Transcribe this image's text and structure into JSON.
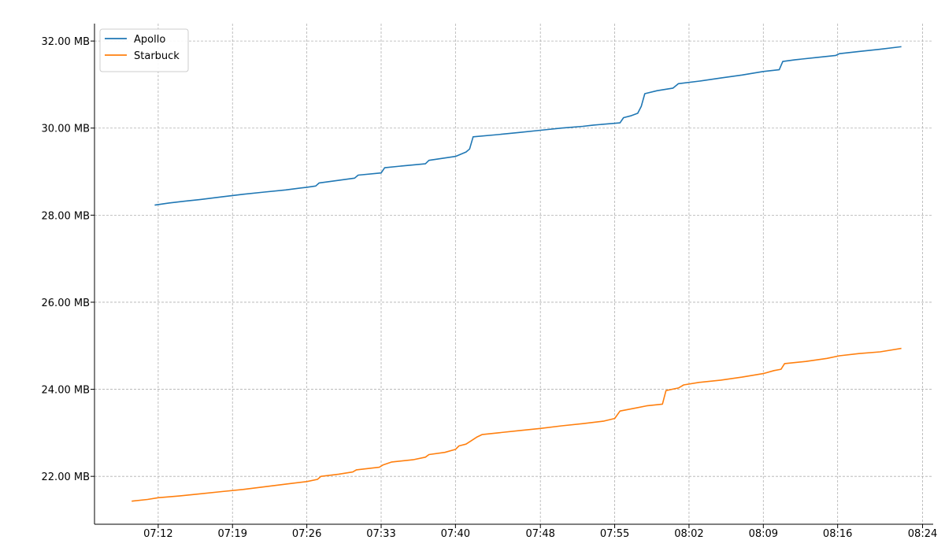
{
  "chart_data": {
    "type": "line",
    "title": "",
    "xlabel": "",
    "ylabel": "",
    "x_ticks": [
      "07:12",
      "07:19",
      "07:26",
      "07:33",
      "07:40",
      "07:48",
      "07:55",
      "08:02",
      "08:09",
      "08:16",
      "08:24"
    ],
    "y_ticks": [
      "22.00 MB",
      "24.00 MB",
      "26.00 MB",
      "28.00 MB",
      "30.00 MB",
      "32.00 MB"
    ],
    "xlim": [
      "07:06",
      "08:25"
    ],
    "ylim": [
      20.9,
      32.4
    ],
    "grid": true,
    "legend": "top-left",
    "series": [
      {
        "name": "Apollo",
        "color": "#1f77b4",
        "points": [
          [
            "07:11:40",
            28.23
          ],
          [
            "07:13:00",
            28.28
          ],
          [
            "07:14:30",
            28.32
          ],
          [
            "07:16:00",
            28.36
          ],
          [
            "07:18:00",
            28.42
          ],
          [
            "07:20:00",
            28.48
          ],
          [
            "07:22:00",
            28.53
          ],
          [
            "07:24:00",
            28.58
          ],
          [
            "07:26:00",
            28.64
          ],
          [
            "07:26:50",
            28.67
          ],
          [
            "07:27:10",
            28.74
          ],
          [
            "07:29:00",
            28.8
          ],
          [
            "07:30:30",
            28.85
          ],
          [
            "07:30:50",
            28.92
          ],
          [
            "07:33:00",
            28.97
          ],
          [
            "07:33:20",
            29.09
          ],
          [
            "07:35:00",
            29.13
          ],
          [
            "07:37:10",
            29.18
          ],
          [
            "07:37:30",
            29.26
          ],
          [
            "07:40:00",
            29.35
          ],
          [
            "07:41:00",
            29.45
          ],
          [
            "07:41:20",
            29.52
          ],
          [
            "07:41:40",
            29.8
          ],
          [
            "07:44:00",
            29.85
          ],
          [
            "07:46:00",
            29.9
          ],
          [
            "07:48:00",
            29.95
          ],
          [
            "07:50:00",
            30.0
          ],
          [
            "07:52:00",
            30.04
          ],
          [
            "07:53:00",
            30.07
          ],
          [
            "07:55:30",
            30.12
          ],
          [
            "07:55:50",
            30.24
          ],
          [
            "07:56:30",
            30.28
          ],
          [
            "07:57:10",
            30.34
          ],
          [
            "07:57:30",
            30.5
          ],
          [
            "07:57:50",
            30.79
          ],
          [
            "07:59:00",
            30.86
          ],
          [
            "08:00:30",
            30.92
          ],
          [
            "08:01:00",
            31.02
          ],
          [
            "08:03:00",
            31.08
          ],
          [
            "08:05:00",
            31.15
          ],
          [
            "08:07:00",
            31.22
          ],
          [
            "08:09:00",
            31.3
          ],
          [
            "08:10:30",
            31.34
          ],
          [
            "08:10:50",
            31.53
          ],
          [
            "08:12:00",
            31.57
          ],
          [
            "08:14:00",
            31.62
          ],
          [
            "08:15:50",
            31.67
          ],
          [
            "08:16:10",
            31.71
          ],
          [
            "08:18:00",
            31.76
          ],
          [
            "08:20:00",
            31.81
          ],
          [
            "08:22:00",
            31.87
          ]
        ]
      },
      {
        "name": "Starbuck",
        "color": "#ff7f0e",
        "points": [
          [
            "07:09:30",
            21.43
          ],
          [
            "07:11:00",
            21.47
          ],
          [
            "07:12:00",
            21.51
          ],
          [
            "07:14:00",
            21.55
          ],
          [
            "07:16:00",
            21.6
          ],
          [
            "07:18:00",
            21.65
          ],
          [
            "07:20:00",
            21.7
          ],
          [
            "07:22:00",
            21.76
          ],
          [
            "07:24:00",
            21.82
          ],
          [
            "07:26:00",
            21.88
          ],
          [
            "07:27:00",
            21.93
          ],
          [
            "07:27:20",
            22.0
          ],
          [
            "07:29:00",
            22.05
          ],
          [
            "07:30:20",
            22.1
          ],
          [
            "07:30:40",
            22.15
          ],
          [
            "07:32:50",
            22.21
          ],
          [
            "07:33:10",
            22.26
          ],
          [
            "07:34:00",
            22.33
          ],
          [
            "07:36:00",
            22.38
          ],
          [
            "07:37:10",
            22.44
          ],
          [
            "07:37:30",
            22.5
          ],
          [
            "07:39:00",
            22.55
          ],
          [
            "07:40:00",
            22.62
          ],
          [
            "07:40:20",
            22.7
          ],
          [
            "07:41:00",
            22.74
          ],
          [
            "07:41:30",
            22.82
          ],
          [
            "07:42:00",
            22.9
          ],
          [
            "07:42:30",
            22.96
          ],
          [
            "07:44:00",
            23.0
          ],
          [
            "07:46:00",
            23.05
          ],
          [
            "07:48:00",
            23.1
          ],
          [
            "07:50:00",
            23.16
          ],
          [
            "07:52:00",
            23.21
          ],
          [
            "07:54:00",
            23.27
          ],
          [
            "07:55:00",
            23.33
          ],
          [
            "07:55:30",
            23.5
          ],
          [
            "07:57:00",
            23.57
          ],
          [
            "07:58:00",
            23.62
          ],
          [
            "07:59:30",
            23.66
          ],
          [
            "07:59:50",
            23.97
          ],
          [
            "08:01:00",
            24.03
          ],
          [
            "08:01:30",
            24.1
          ],
          [
            "08:03:00",
            24.16
          ],
          [
            "08:05:00",
            24.21
          ],
          [
            "08:07:00",
            24.28
          ],
          [
            "08:09:00",
            24.36
          ],
          [
            "08:10:00",
            24.43
          ],
          [
            "08:10:40",
            24.46
          ],
          [
            "08:11:00",
            24.59
          ],
          [
            "08:13:00",
            24.64
          ],
          [
            "08:15:00",
            24.71
          ],
          [
            "08:16:10",
            24.77
          ],
          [
            "08:18:00",
            24.82
          ],
          [
            "08:20:00",
            24.86
          ],
          [
            "08:22:00",
            24.94
          ]
        ]
      }
    ]
  }
}
